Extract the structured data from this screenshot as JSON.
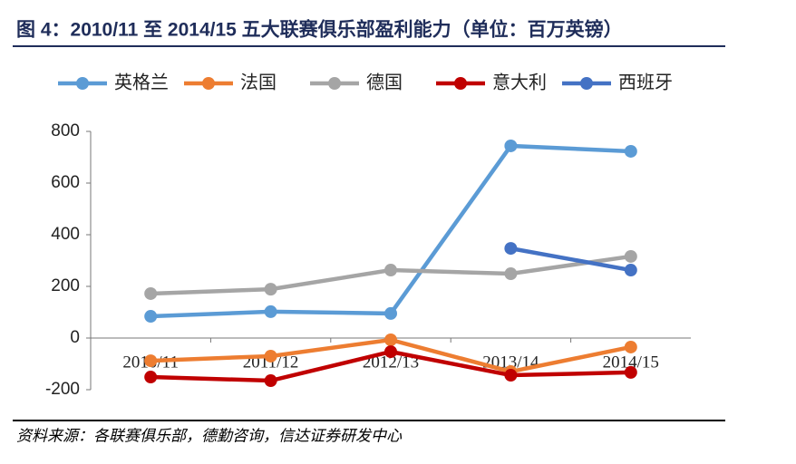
{
  "chart_data": {
    "type": "line",
    "title": "图 4：2010/11 至 2014/15 五大联赛俱乐部盈利能力（单位：百万英镑）",
    "source": "资料来源：各联赛俱乐部，德勤咨询，信达证券研发中心",
    "categories": [
      "2010/11",
      "2011/12",
      "2012/13",
      "2013/14",
      "2014/15"
    ],
    "series": [
      {
        "name": "英格兰",
        "color": "#5b9bd5",
        "values": [
          84,
          102,
          95,
          744,
          723
        ]
      },
      {
        "name": "法国",
        "color": "#ed7d31",
        "values": [
          -88,
          -70,
          -7,
          -130,
          -35
        ]
      },
      {
        "name": "德国",
        "color": "#a5a5a5",
        "values": [
          172,
          189,
          263,
          249,
          316
        ]
      },
      {
        "name": "意大利",
        "color": "#c00000",
        "values": [
          -151,
          -165,
          -53,
          -144,
          -133
        ]
      },
      {
        "name": "西班牙",
        "color": "#4472c4",
        "values": [
          null,
          null,
          null,
          347,
          263
        ]
      }
    ],
    "ylim": [
      -200,
      800
    ],
    "yticks": [
      -200,
      0,
      200,
      400,
      600,
      800
    ],
    "grid": false
  }
}
